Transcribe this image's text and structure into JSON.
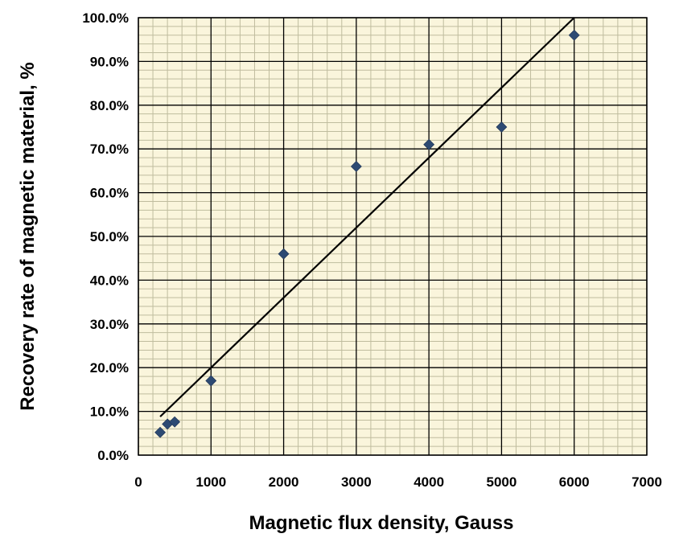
{
  "chart_data": {
    "type": "scatter",
    "xlabel": "Magnetic flux density, Gauss",
    "ylabel": "Recovery rate of magnetic material, %",
    "xlim": [
      0,
      7000
    ],
    "ylim": [
      0,
      100
    ],
    "x_ticks": [
      "0",
      "1000",
      "2000",
      "3000",
      "4000",
      "5000",
      "6000",
      "7000"
    ],
    "y_ticks": [
      "0.0%",
      "10.0%",
      "20.0%",
      "30.0%",
      "40.0%",
      "50.0%",
      "60.0%",
      "70.0%",
      "80.0%",
      "90.0%",
      "100.0%"
    ],
    "grid": "major and minor",
    "background": "#FAF5DC",
    "minor_grid_color": "#BFBC9E",
    "major_grid_color": "#000000",
    "marker": "diamond",
    "marker_color": "#2D4A73",
    "series": [
      {
        "x": [
          300,
          400,
          500,
          1000,
          2000,
          3000,
          4000,
          5000,
          6000
        ],
        "y": [
          5.2,
          7.1,
          7.6,
          17.0,
          46.0,
          66.0,
          71.0,
          75.0,
          96.0
        ]
      }
    ],
    "trendline": {
      "type": "linear",
      "x": [
        300,
        6000
      ],
      "y": [
        8.8,
        100
      ]
    }
  }
}
